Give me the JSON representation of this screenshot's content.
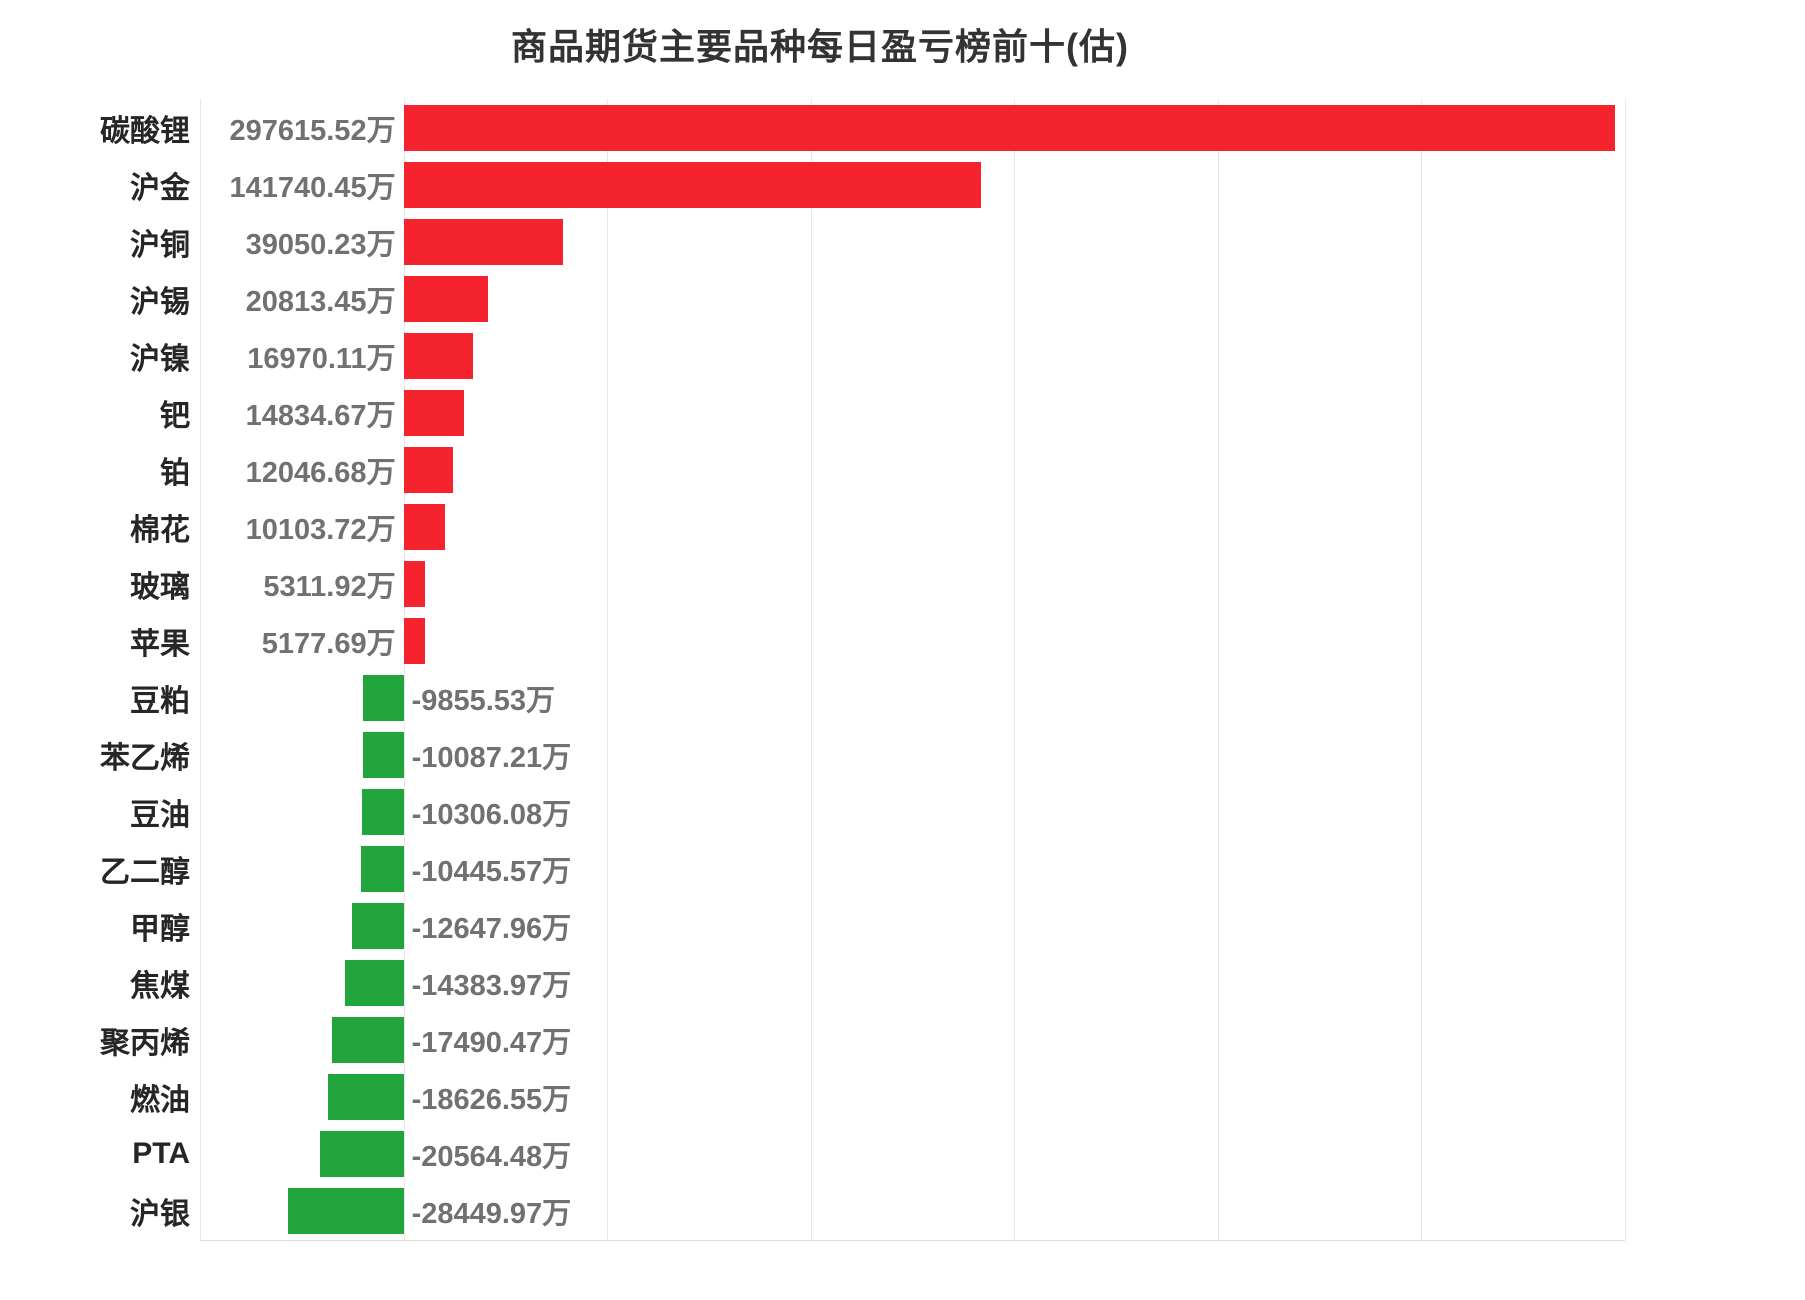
{
  "chart_data": {
    "type": "bar",
    "orientation": "horizontal",
    "title": "商品期货主要品种每日盈亏榜前十(估)",
    "value_unit": "万",
    "categories": [
      "碳酸锂",
      "沪金",
      "沪铜",
      "沪锡",
      "沪镍",
      "钯",
      "铂",
      "棉花",
      "玻璃",
      "苹果",
      "豆粕",
      "苯乙烯",
      "豆油",
      "乙二醇",
      "甲醇",
      "焦煤",
      "聚丙烯",
      "燃油",
      "PTA",
      "沪银"
    ],
    "values": [
      297615.52,
      141740.45,
      39050.23,
      20813.45,
      16970.11,
      14834.67,
      12046.68,
      10103.72,
      5311.92,
      5177.69,
      -9855.53,
      -10087.21,
      -10306.08,
      -10445.57,
      -12647.96,
      -14383.97,
      -17490.47,
      -18626.55,
      -20564.48,
      -28449.97
    ],
    "value_labels": [
      "297615.52万",
      "141740.45万",
      "39050.23万",
      "20813.45万",
      "16970.11万",
      "14834.67万",
      "12046.68万",
      "10103.72万",
      "5311.92万",
      "5177.69万",
      "-9855.53万",
      "-10087.21万",
      "-10306.08万",
      "-10445.57万",
      "-12647.96万",
      "-14383.97万",
      "-17490.47万",
      "-18626.55万",
      "-20564.48万",
      "-28449.97万"
    ],
    "xlim": [
      -50000,
      300000
    ],
    "grid_step": 50000,
    "grid": true,
    "legend": "none",
    "xlabel": "",
    "ylabel": "",
    "colors": {
      "positive_bar": "#f5232d",
      "negative_bar": "#22a53c",
      "title_text": "#333333",
      "category_text": "#262626",
      "value_text": "#717171",
      "gridline": "#e5e5e5",
      "axis_line": "#dcdcdc",
      "background": "#ffffff"
    }
  }
}
